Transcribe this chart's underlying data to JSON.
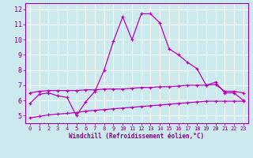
{
  "xlabel": "Windchill (Refroidissement éolien,°C)",
  "bg_color": "#cce9ee",
  "grid_color": "#ffffff",
  "line_color": "#bb00bb",
  "spine_color": "#9900aa",
  "ylim": [
    4.5,
    12.4
  ],
  "xlim": [
    -0.5,
    23.5
  ],
  "yticks": [
    5,
    6,
    7,
    8,
    9,
    10,
    11,
    12
  ],
  "xticks": [
    0,
    1,
    2,
    3,
    4,
    5,
    6,
    7,
    8,
    9,
    10,
    11,
    12,
    13,
    14,
    15,
    16,
    17,
    18,
    19,
    20,
    21,
    22,
    23
  ],
  "series1_x": [
    0,
    1,
    2,
    3,
    4,
    5,
    6,
    7,
    8,
    9,
    10,
    11,
    12,
    13,
    14,
    15,
    16,
    17,
    18,
    19,
    20,
    21,
    22,
    23
  ],
  "series1_y": [
    5.8,
    6.4,
    6.5,
    6.3,
    6.2,
    5.0,
    5.9,
    6.6,
    8.0,
    9.9,
    11.5,
    10.0,
    11.7,
    11.7,
    11.1,
    9.4,
    9.0,
    8.5,
    8.1,
    7.0,
    7.2,
    6.5,
    6.5,
    6.0
  ],
  "series2_x": [
    0,
    1,
    2,
    3,
    4,
    5,
    6,
    7,
    8,
    9,
    10,
    11,
    12,
    13,
    14,
    15,
    16,
    17,
    18,
    19,
    20,
    21,
    22,
    23
  ],
  "series2_y": [
    6.5,
    6.6,
    6.65,
    6.65,
    6.65,
    6.65,
    6.7,
    6.7,
    6.75,
    6.75,
    6.75,
    6.8,
    6.85,
    6.85,
    6.9,
    6.9,
    6.95,
    7.0,
    7.0,
    7.0,
    7.05,
    6.6,
    6.6,
    6.5
  ],
  "series3_x": [
    0,
    1,
    2,
    3,
    4,
    5,
    6,
    7,
    8,
    9,
    10,
    11,
    12,
    13,
    14,
    15,
    16,
    17,
    18,
    19,
    20,
    21,
    22,
    23
  ],
  "series3_y": [
    4.85,
    4.95,
    5.05,
    5.1,
    5.15,
    5.2,
    5.3,
    5.35,
    5.4,
    5.45,
    5.5,
    5.55,
    5.6,
    5.65,
    5.7,
    5.75,
    5.8,
    5.85,
    5.9,
    5.95,
    5.95,
    5.95,
    5.95,
    5.95
  ]
}
